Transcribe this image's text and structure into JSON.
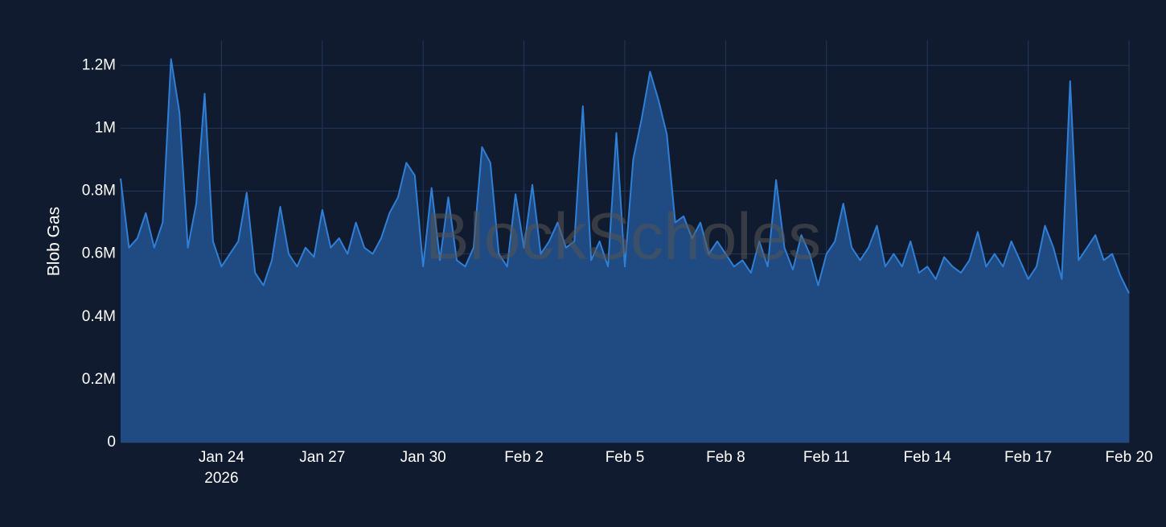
{
  "chart_data": {
    "type": "area",
    "y_axis_label": "Blob Gas",
    "watermark": "BlockScholes",
    "x_year_label": "2026",
    "x": [
      "2026-01-21T00:00",
      "2026-01-21T06:00",
      "2026-01-21T12:00",
      "2026-01-21T18:00",
      "2026-01-22T00:00",
      "2026-01-22T06:00",
      "2026-01-22T12:00",
      "2026-01-22T18:00",
      "2026-01-23T00:00",
      "2026-01-23T06:00",
      "2026-01-23T12:00",
      "2026-01-23T18:00",
      "2026-01-24T00:00",
      "2026-01-24T06:00",
      "2026-01-24T12:00",
      "2026-01-24T18:00",
      "2026-01-25T00:00",
      "2026-01-25T06:00",
      "2026-01-25T12:00",
      "2026-01-25T18:00",
      "2026-01-26T00:00",
      "2026-01-26T06:00",
      "2026-01-26T12:00",
      "2026-01-26T18:00",
      "2026-01-27T00:00",
      "2026-01-27T06:00",
      "2026-01-27T12:00",
      "2026-01-27T18:00",
      "2026-01-28T00:00",
      "2026-01-28T06:00",
      "2026-01-28T12:00",
      "2026-01-28T18:00",
      "2026-01-29T00:00",
      "2026-01-29T06:00",
      "2026-01-29T12:00",
      "2026-01-29T18:00",
      "2026-01-30T00:00",
      "2026-01-30T06:00",
      "2026-01-30T12:00",
      "2026-01-30T18:00",
      "2026-01-31T00:00",
      "2026-01-31T06:00",
      "2026-01-31T12:00",
      "2026-01-31T18:00",
      "2026-02-01T00:00",
      "2026-02-01T06:00",
      "2026-02-01T12:00",
      "2026-02-01T18:00",
      "2026-02-02T00:00",
      "2026-02-02T06:00",
      "2026-02-02T12:00",
      "2026-02-02T18:00",
      "2026-02-03T00:00",
      "2026-02-03T06:00",
      "2026-02-03T12:00",
      "2026-02-03T18:00",
      "2026-02-04T00:00",
      "2026-02-04T06:00",
      "2026-02-04T12:00",
      "2026-02-04T18:00",
      "2026-02-05T00:00",
      "2026-02-05T06:00",
      "2026-02-05T12:00",
      "2026-02-05T18:00",
      "2026-02-06T00:00",
      "2026-02-06T06:00",
      "2026-02-06T12:00",
      "2026-02-06T18:00",
      "2026-02-07T00:00",
      "2026-02-07T06:00",
      "2026-02-07T12:00",
      "2026-02-07T18:00",
      "2026-02-08T00:00",
      "2026-02-08T06:00",
      "2026-02-08T12:00",
      "2026-02-08T18:00",
      "2026-02-09T00:00",
      "2026-02-09T06:00",
      "2026-02-09T12:00",
      "2026-02-09T18:00",
      "2026-02-10T00:00",
      "2026-02-10T06:00",
      "2026-02-10T12:00",
      "2026-02-10T18:00",
      "2026-02-11T00:00",
      "2026-02-11T06:00",
      "2026-02-11T12:00",
      "2026-02-11T18:00",
      "2026-02-12T00:00",
      "2026-02-12T06:00",
      "2026-02-12T12:00",
      "2026-02-12T18:00",
      "2026-02-13T00:00",
      "2026-02-13T06:00",
      "2026-02-13T12:00",
      "2026-02-13T18:00",
      "2026-02-14T00:00",
      "2026-02-14T06:00",
      "2026-02-14T12:00",
      "2026-02-14T18:00",
      "2026-02-15T00:00",
      "2026-02-15T06:00",
      "2026-02-15T12:00",
      "2026-02-15T18:00",
      "2026-02-16T00:00",
      "2026-02-16T06:00",
      "2026-02-16T12:00",
      "2026-02-16T18:00",
      "2026-02-17T00:00",
      "2026-02-17T06:00",
      "2026-02-17T12:00",
      "2026-02-17T18:00",
      "2026-02-18T00:00",
      "2026-02-18T06:00",
      "2026-02-18T12:00",
      "2026-02-18T18:00",
      "2026-02-19T00:00",
      "2026-02-19T06:00",
      "2026-02-19T12:00",
      "2026-02-19T18:00",
      "2026-02-20T00:00"
    ],
    "series": [
      {
        "color": "#2f7fd6",
        "fill": "#1f4a82",
        "values": [
          840000,
          620000,
          650000,
          730000,
          620000,
          700000,
          1220000,
          1050000,
          620000,
          760000,
          1110000,
          640000,
          560000,
          600000,
          640000,
          795000,
          540000,
          500000,
          580000,
          750000,
          600000,
          560000,
          620000,
          590000,
          740000,
          620000,
          650000,
          600000,
          700000,
          620000,
          600000,
          650000,
          730000,
          780000,
          890000,
          850000,
          560000,
          810000,
          580000,
          780000,
          580000,
          560000,
          620000,
          940000,
          890000,
          600000,
          560000,
          790000,
          620000,
          820000,
          600000,
          640000,
          700000,
          620000,
          640000,
          1070000,
          580000,
          640000,
          560000,
          985000,
          560000,
          900000,
          1030000,
          1180000,
          1090000,
          980000,
          700000,
          720000,
          650000,
          700000,
          600000,
          640000,
          600000,
          560000,
          580000,
          540000,
          640000,
          560000,
          835000,
          620000,
          550000,
          660000,
          600000,
          500000,
          600000,
          640000,
          760000,
          620000,
          580000,
          620000,
          690000,
          560000,
          600000,
          560000,
          640000,
          540000,
          560000,
          520000,
          590000,
          560000,
          540000,
          580000,
          670000,
          560000,
          600000,
          560000,
          640000,
          580000,
          520000,
          560000,
          690000,
          620000,
          520000,
          1150000,
          580000,
          620000,
          660000,
          580000,
          600000,
          530000,
          475000
        ]
      }
    ],
    "xlim": [
      "2026-01-21T00:00",
      "2026-02-20T00:00"
    ],
    "xticks": [
      {
        "value": "2026-01-24T00:00",
        "label": "Jan 24"
      },
      {
        "value": "2026-01-27T00:00",
        "label": "Jan 27"
      },
      {
        "value": "2026-01-30T00:00",
        "label": "Jan 30"
      },
      {
        "value": "2026-02-02T00:00",
        "label": "Feb 2"
      },
      {
        "value": "2026-02-05T00:00",
        "label": "Feb 5"
      },
      {
        "value": "2026-02-08T00:00",
        "label": "Feb 8"
      },
      {
        "value": "2026-02-11T00:00",
        "label": "Feb 11"
      },
      {
        "value": "2026-02-14T00:00",
        "label": "Feb 14"
      },
      {
        "value": "2026-02-17T00:00",
        "label": "Feb 17"
      },
      {
        "value": "2026-02-20T00:00",
        "label": "Feb 20"
      }
    ],
    "ylim": [
      0,
      1280000
    ],
    "yticks": [
      0,
      {
        "value": 200000,
        "label": "0.2M"
      },
      {
        "value": 400000,
        "label": "0.4M"
      },
      {
        "value": 600000,
        "label": "0.6M"
      },
      {
        "value": 800000,
        "label": "0.8M"
      },
      {
        "value": 1000000,
        "label": "1M"
      },
      {
        "value": 1200000,
        "label": "1.2M"
      }
    ],
    "grid": true
  }
}
